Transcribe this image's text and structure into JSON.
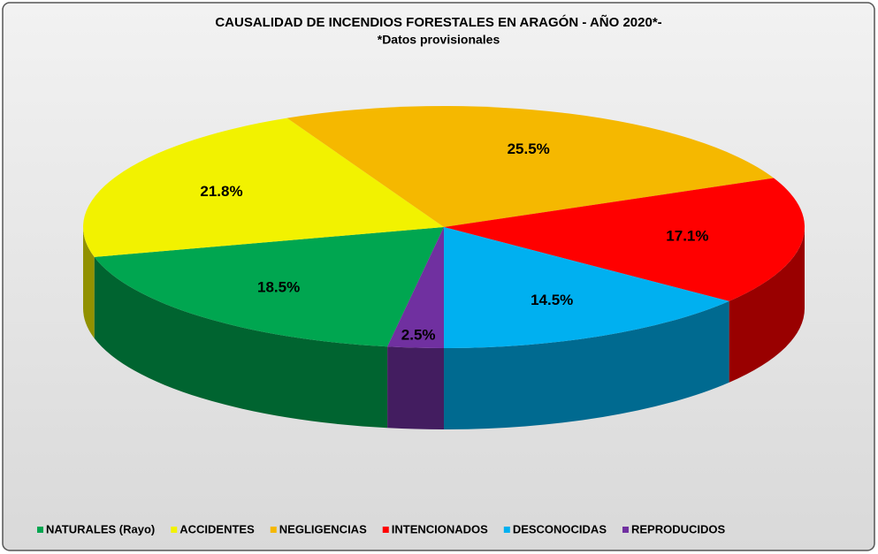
{
  "chart_data": {
    "type": "pie3d",
    "title": "CAUSALIDAD DE INCENDIOS FORESTALES EN ARAGÓN  - AÑO 2020*-",
    "subtitle": "*Datos provisionales",
    "categories": [
      "NATURALES (Rayo)",
      "ACCIDENTES",
      "NEGLIGENCIAS",
      "INTENCIONADOS",
      "DESCONOCIDAS",
      "REPRODUCIDOS"
    ],
    "values": [
      18.5,
      21.8,
      25.5,
      17.1,
      14.5,
      2.5
    ],
    "value_labels": [
      "18.5%",
      "21.8%",
      "25.5%",
      "17.1%",
      "14.5%",
      "2.5%"
    ],
    "colors": [
      "#00a650",
      "#f2f200",
      "#f5b800",
      "#ff0000",
      "#00b0f0",
      "#7030a0"
    ],
    "legend": "bottom"
  }
}
